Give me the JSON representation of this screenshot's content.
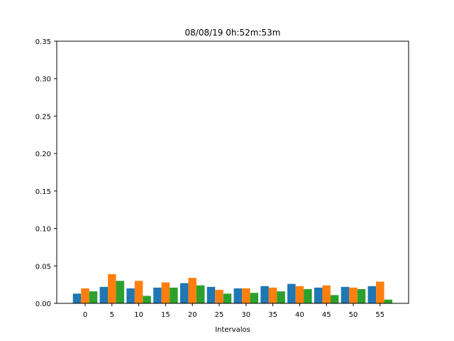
{
  "chart_data": {
    "type": "bar",
    "title": "08/08/19 0h:52m:53m",
    "xlabel": "Intervalos",
    "ylabel": "",
    "categories": [
      "0",
      "5",
      "10",
      "15",
      "20",
      "25",
      "30",
      "35",
      "40",
      "45",
      "50",
      "55"
    ],
    "ylim": [
      0,
      0.35
    ],
    "yticks": [
      "0.00",
      "0.05",
      "0.10",
      "0.15",
      "0.20",
      "0.25",
      "0.30",
      "0.35"
    ],
    "grid": false,
    "legend": "none",
    "series": [
      {
        "color": "#1f77b4",
        "values": [
          0.013,
          0.022,
          0.02,
          0.021,
          0.027,
          0.022,
          0.02,
          0.023,
          0.026,
          0.021,
          0.022,
          0.023
        ]
      },
      {
        "color": "#ff7f0e",
        "values": [
          0.02,
          0.039,
          0.03,
          0.028,
          0.034,
          0.018,
          0.02,
          0.021,
          0.023,
          0.024,
          0.021,
          0.029
        ]
      },
      {
        "color": "#2ca02c",
        "values": [
          0.016,
          0.03,
          0.01,
          0.021,
          0.024,
          0.013,
          0.014,
          0.016,
          0.019,
          0.011,
          0.019,
          0.005
        ]
      }
    ]
  }
}
